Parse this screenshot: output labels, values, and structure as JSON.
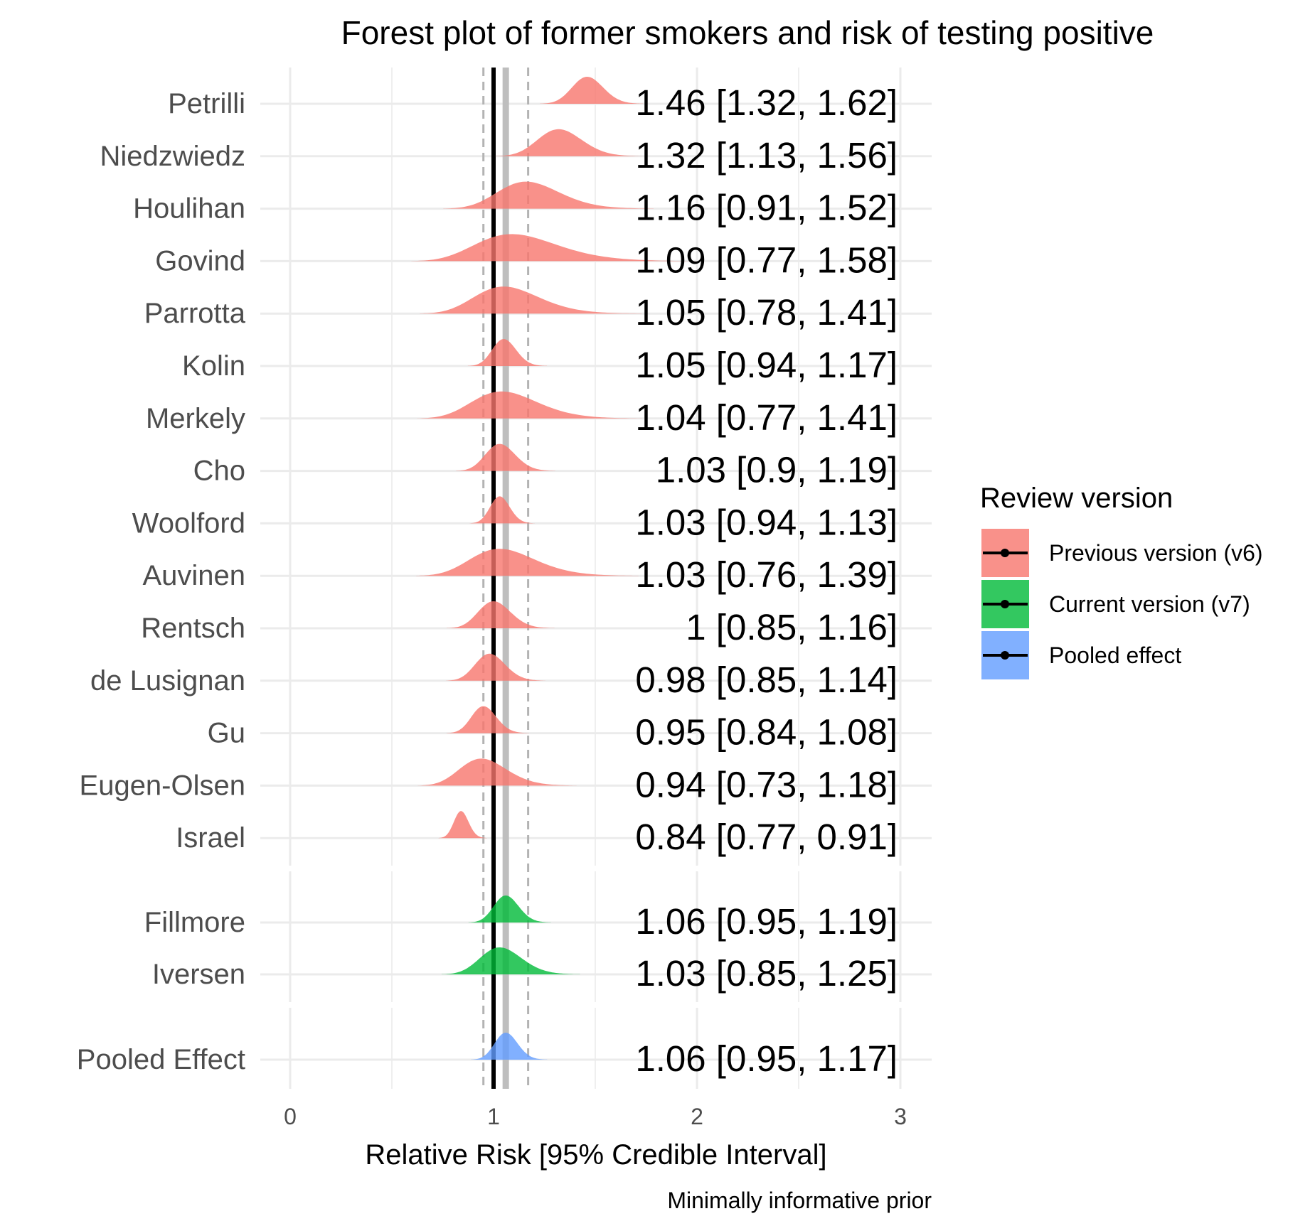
{
  "chart_data": {
    "type": "forest",
    "title": "Forest plot of former smokers and risk of testing positive",
    "xlabel": "Relative Risk [95% Credible Interval]",
    "caption": "Minimally informative prior",
    "xlim": [
      0,
      3
    ],
    "xticks": [
      0,
      1,
      2,
      3
    ],
    "reference_line": 1,
    "pooled_estimate_line": 1.06,
    "pooled_interval_lines": [
      0.95,
      1.17
    ],
    "grid": true,
    "legend": {
      "title": "Review version",
      "position": "right",
      "entries": [
        {
          "name": "Previous version (v6)",
          "color": "#F8766D"
        },
        {
          "name": "Current version (v7)",
          "color": "#00BA38"
        },
        {
          "name": "Pooled effect",
          "color": "#619CFF"
        }
      ]
    },
    "groups": [
      {
        "name": "Previous version (v6)",
        "color": "#F8766D",
        "studies": [
          {
            "study": "Petrilli",
            "estimate": 1.46,
            "lower": 1.32,
            "upper": 1.62,
            "label": "1.46 [1.32, 1.62]"
          },
          {
            "study": "Niedzwiedz",
            "estimate": 1.32,
            "lower": 1.13,
            "upper": 1.56,
            "label": "1.32 [1.13, 1.56]"
          },
          {
            "study": "Houlihan",
            "estimate": 1.16,
            "lower": 0.91,
            "upper": 1.52,
            "label": "1.16 [0.91, 1.52]"
          },
          {
            "study": "Govind",
            "estimate": 1.09,
            "lower": 0.77,
            "upper": 1.58,
            "label": "1.09 [0.77, 1.58]"
          },
          {
            "study": "Parrotta",
            "estimate": 1.05,
            "lower": 0.78,
            "upper": 1.41,
            "label": "1.05 [0.78, 1.41]"
          },
          {
            "study": "Kolin",
            "estimate": 1.05,
            "lower": 0.94,
            "upper": 1.17,
            "label": "1.05 [0.94, 1.17]"
          },
          {
            "study": "Merkely",
            "estimate": 1.04,
            "lower": 0.77,
            "upper": 1.41,
            "label": "1.04 [0.77, 1.41]"
          },
          {
            "study": "Cho",
            "estimate": 1.03,
            "lower": 0.9,
            "upper": 1.19,
            "label": "1.03 [0.9, 1.19]"
          },
          {
            "study": "Woolford",
            "estimate": 1.03,
            "lower": 0.94,
            "upper": 1.13,
            "label": "1.03 [0.94, 1.13]"
          },
          {
            "study": "Auvinen",
            "estimate": 1.03,
            "lower": 0.76,
            "upper": 1.39,
            "label": "1.03 [0.76, 1.39]"
          },
          {
            "study": "Rentsch",
            "estimate": 1,
            "lower": 0.85,
            "upper": 1.16,
            "label": "1 [0.85, 1.16]"
          },
          {
            "study": "de Lusignan",
            "estimate": 0.98,
            "lower": 0.85,
            "upper": 1.14,
            "label": "0.98 [0.85, 1.14]"
          },
          {
            "study": "Gu",
            "estimate": 0.95,
            "lower": 0.84,
            "upper": 1.08,
            "label": "0.95 [0.84, 1.08]"
          },
          {
            "study": "Eugen-Olsen",
            "estimate": 0.94,
            "lower": 0.73,
            "upper": 1.18,
            "label": "0.94 [0.73, 1.18]"
          },
          {
            "study": "Israel",
            "estimate": 0.84,
            "lower": 0.77,
            "upper": 0.91,
            "label": "0.84 [0.77, 0.91]"
          }
        ]
      },
      {
        "name": "Current version (v7)",
        "color": "#00BA38",
        "studies": [
          {
            "study": "Fillmore",
            "estimate": 1.06,
            "lower": 0.95,
            "upper": 1.19,
            "label": "1.06 [0.95, 1.19]"
          },
          {
            "study": "Iversen",
            "estimate": 1.03,
            "lower": 0.85,
            "upper": 1.25,
            "label": "1.03 [0.85, 1.25]"
          }
        ]
      },
      {
        "name": "Pooled effect",
        "color": "#619CFF",
        "studies": [
          {
            "study": "Pooled Effect",
            "estimate": 1.06,
            "lower": 0.95,
            "upper": 1.17,
            "label": "1.06 [0.95, 1.17]"
          }
        ]
      }
    ]
  }
}
